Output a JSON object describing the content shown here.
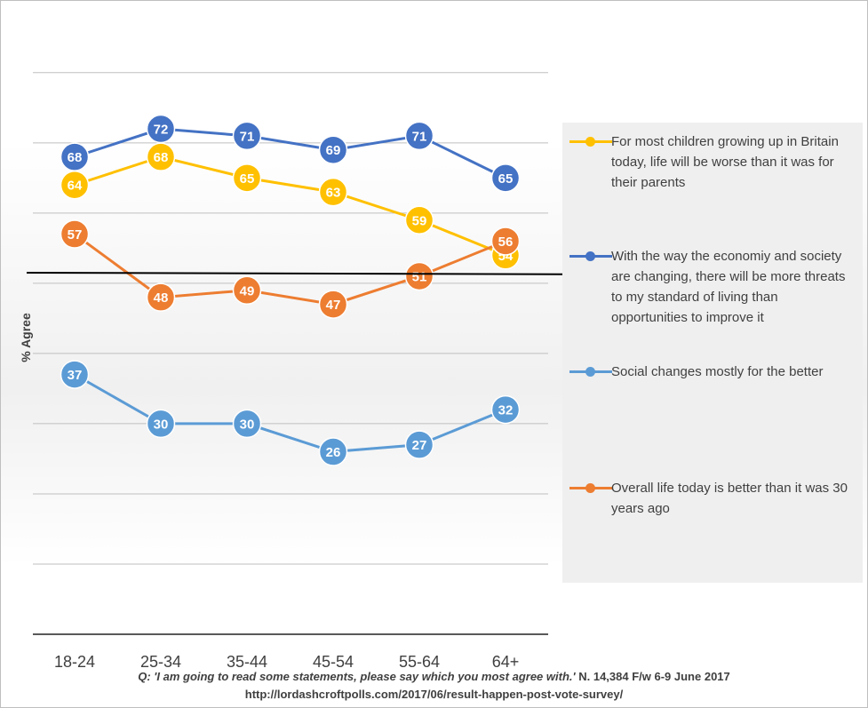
{
  "chart_data": {
    "type": "line",
    "title": "",
    "xlabel": "",
    "ylabel": "% Agree",
    "categories": [
      "18-24",
      "25-34",
      "35-44",
      "45-54",
      "55-64",
      "64+"
    ],
    "ylim": [
      0,
      82
    ],
    "grid": true,
    "reference_line": 50,
    "legend_position": "right",
    "series": [
      {
        "name": "For most children growing up in Britain today, life will be worse than it was for their parents",
        "color": "#FFC000",
        "values": [
          64,
          68,
          65,
          63,
          59,
          54
        ]
      },
      {
        "name": "With the way the economiy and society are changing, there will be more threats to my standard of living than opportunities to improve it",
        "color": "#4472C4",
        "values": [
          68,
          72,
          71,
          69,
          71,
          65
        ]
      },
      {
        "name": "Social changes mostly for the better",
        "color": "#5B9BD5",
        "values": [
          37,
          30,
          30,
          26,
          27,
          32
        ]
      },
      {
        "name": "Overall life today is better than it was 30 years ago",
        "color": "#ED7D31",
        "values": [
          57,
          48,
          49,
          47,
          51,
          56
        ]
      }
    ]
  },
  "footnote": {
    "q_prefix": "Q: ",
    "question": "'I am going to read some statements, please say which you most agree with.'",
    "details": " N. 14,384 F/w 6-9 June 2017",
    "url": "http://lordashcroftpolls.com/2017/06/result-happen-post-vote-survey/"
  }
}
